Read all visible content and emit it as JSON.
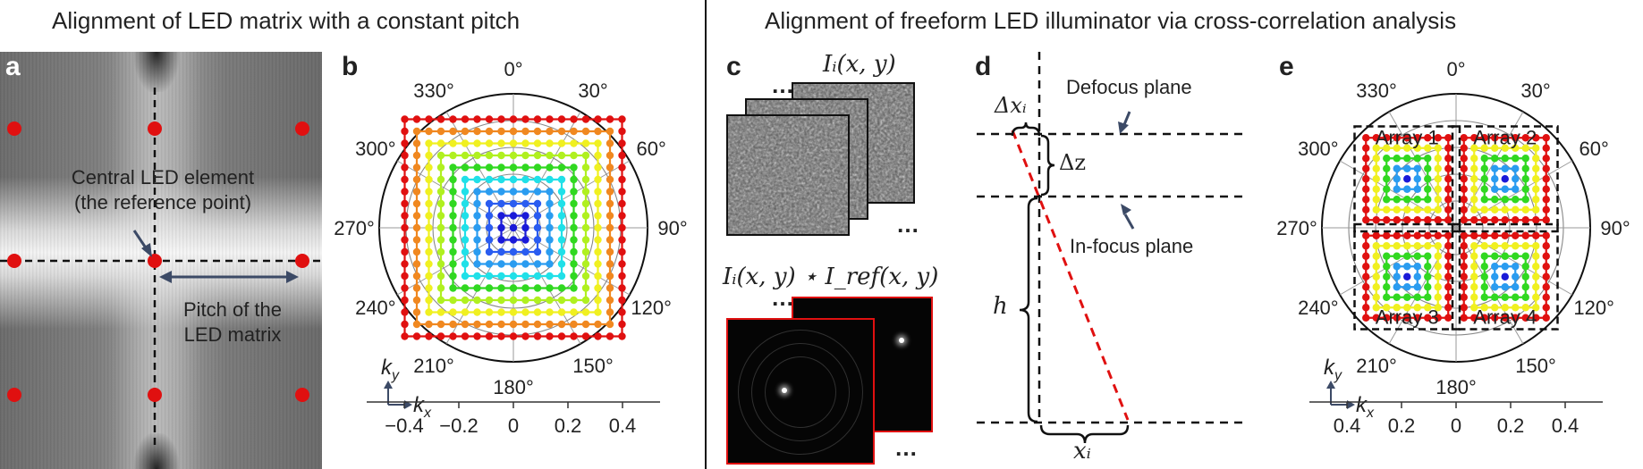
{
  "headers": {
    "left": "Alignment of LED matrix with a constant pitch",
    "right": "Alignment of freeform LED illuminator via cross-correlation analysis"
  },
  "panels": {
    "a": "a",
    "b": "b",
    "c": "c",
    "d": "d",
    "e": "e"
  },
  "panel_a": {
    "central_label_line1": "Central LED element",
    "central_label_line2": "(the reference point)",
    "pitch_label_line1": "Pitch of the",
    "pitch_label_line2": "LED matrix",
    "led_color": "#e01010"
  },
  "polar": {
    "angle_labels": [
      "0°",
      "30°",
      "60°",
      "90°",
      "120°",
      "150°",
      "180°",
      "210°",
      "240°",
      "270°",
      "300°",
      "330°"
    ],
    "ky": "k",
    "ky_sub": "y",
    "kx": "k",
    "kx_sub": "x"
  },
  "panel_b_axis": {
    "ticks": [
      "−0.4",
      "−0.2",
      "0",
      "0.2",
      "0.4"
    ]
  },
  "panel_e_axis": {
    "ticks": [
      "0.4",
      "0.2",
      "0",
      "0.2",
      "0.4"
    ]
  },
  "panel_c": {
    "top_label": "Iᵢ(x, y)",
    "bottom_label": "Iᵢ(x, y) ⋆ I_ref(x, y)",
    "ellipsis": "…"
  },
  "panel_d": {
    "defocus": "Defocus plane",
    "infocus": "In-focus plane",
    "delta_x": "Δxᵢ",
    "delta_z": "Δz",
    "h": "h",
    "x_i": "xᵢ"
  },
  "panel_e": {
    "arrays": [
      "Array 1",
      "Array 2",
      "Array 3",
      "Array 4"
    ]
  },
  "ring_colors": [
    "#1a1ad8",
    "#1a1ad8",
    "#2a5cf0",
    "#2a9cf0",
    "#20e0e8",
    "#30d820",
    "#b0f020",
    "#f0f020",
    "#f08820",
    "#e01010"
  ]
}
